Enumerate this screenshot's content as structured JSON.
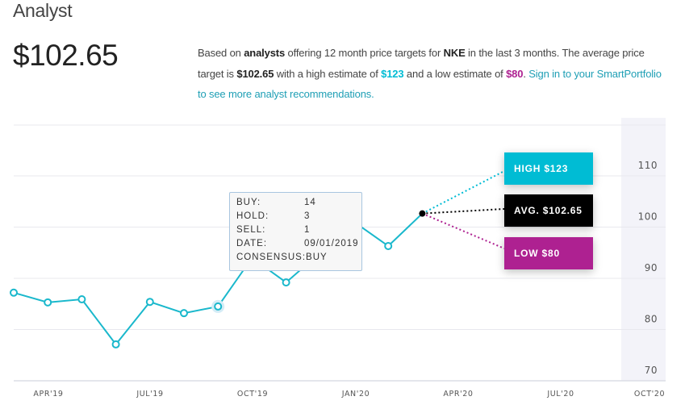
{
  "header": {
    "title": "Analyst",
    "price": "$102.65",
    "desc": {
      "p1": "Based on ",
      "b1": "analysts",
      "p2": " offering 12 month price targets for ",
      "b2": "NKE",
      "p3": " in the last 3 months. The average price target is ",
      "b3": "$102.65",
      "p4": " with a high estimate of ",
      "high": "$123",
      "p5": " and a low estimate of ",
      "low": "$80",
      "p6": ". ",
      "link": "Sign in to your SmartPortfolio to see more analyst recommendations."
    }
  },
  "tooltip": {
    "rows": [
      {
        "k": "BUY:",
        "v": "14"
      },
      {
        "k": "HOLD:",
        "v": "3"
      },
      {
        "k": "SELL:",
        "v": "1"
      },
      {
        "k": "DATE:",
        "v": "09/01/2019"
      },
      {
        "k": "CONSENSUS:",
        "v": "BUY"
      }
    ]
  },
  "chart_data": {
    "type": "line",
    "x": [
      "2019-03",
      "2019-04",
      "2019-05",
      "2019-06",
      "2019-07",
      "2019-08",
      "2019-09",
      "2019-10",
      "2019-11",
      "2019-12",
      "2020-01",
      "2020-02",
      "2020-03"
    ],
    "values": [
      87.2,
      85.3,
      85.9,
      77.1,
      85.4,
      83.2,
      84.5,
      94,
      89.2,
      95,
      101,
      96.3,
      102.65
    ],
    "x_ticks": [
      "APR'19",
      "JUL'19",
      "OCT'19",
      "JAN'20",
      "APR'20",
      "JUL'20",
      "OCT'20"
    ],
    "y_ticks": [
      110,
      100,
      90,
      80,
      70
    ],
    "ylim": [
      70,
      115
    ],
    "grid": true,
    "highlighted_index": 6,
    "targets": {
      "high": {
        "label": "HIGH $123",
        "color": "#00bcd4"
      },
      "avg": {
        "label": "AVG. $102.65",
        "color": "#000000"
      },
      "low": {
        "label": "LOW $80",
        "color": "#ae2191"
      }
    },
    "line_color": "#1ab8cc"
  }
}
